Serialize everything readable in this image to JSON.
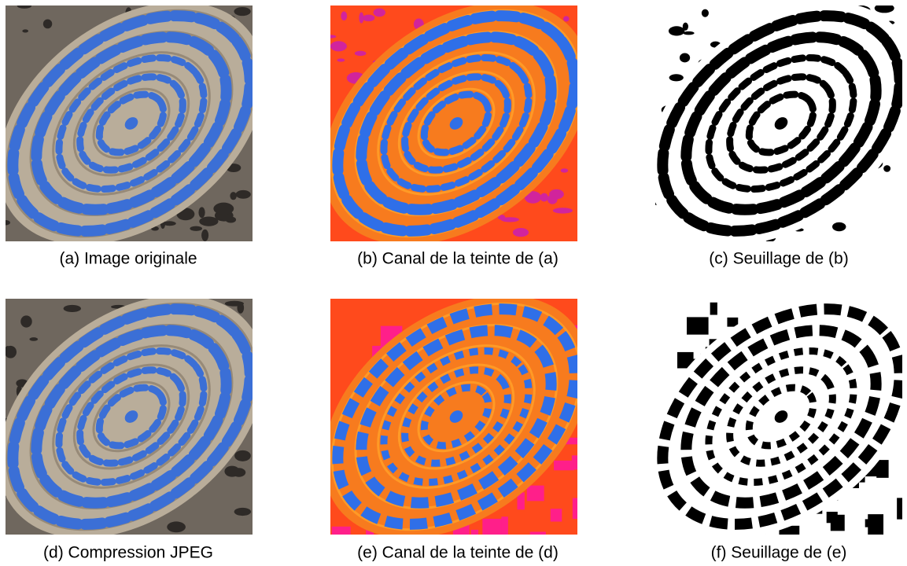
{
  "figure": {
    "captions": [
      "(a) Image originale",
      "(b) Canal de la teinte de (a)",
      "(c) Seuillage de (b)",
      "(d) Compression JPEG",
      "(e) Canal de la teinte de (d)",
      "(f) Seuillage de (e)"
    ]
  }
}
